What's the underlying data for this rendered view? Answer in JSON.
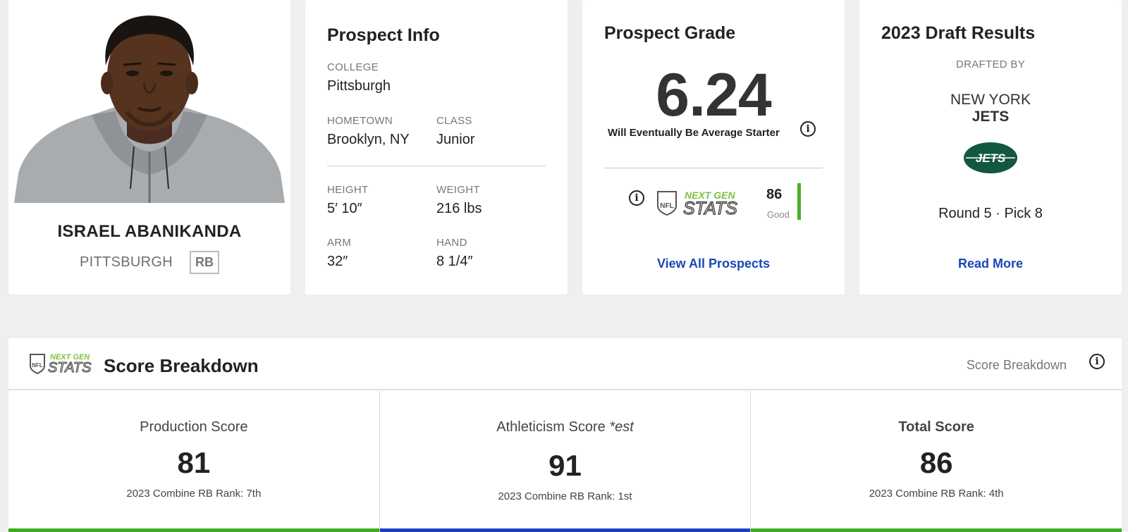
{
  "player": {
    "name": "ISRAEL ABANIKANDA",
    "school": "PITTSBURGH",
    "position": "RB"
  },
  "prospect_info": {
    "title": "Prospect Info",
    "college_label": "COLLEGE",
    "college": "Pittsburgh",
    "hometown_label": "HOMETOWN",
    "hometown": "Brooklyn, NY",
    "class_label": "CLASS",
    "class": "Junior",
    "height_label": "HEIGHT",
    "height": "5′ 10″",
    "weight_label": "WEIGHT",
    "weight": "216 lbs",
    "arm_label": "ARM",
    "arm": "32″",
    "hand_label": "HAND",
    "hand": "8 1/4″"
  },
  "grade": {
    "title": "Prospect Grade",
    "value": "6.24",
    "description": "Will Eventually Be Average Starter",
    "ngs_score": "86",
    "ngs_rating": "Good",
    "link": "View All Prospects"
  },
  "draft": {
    "title": "2023 Draft Results",
    "drafted_by_label": "DRAFTED BY",
    "team_city": "NEW YORK",
    "team_name": "JETS",
    "logo_text": "JETS",
    "pick": "Round 5 · Pick 8",
    "link": "Read More"
  },
  "breakdown": {
    "title": "Score Breakdown",
    "right_label": "Score Breakdown",
    "columns": [
      {
        "title": "Production Score",
        "est": "",
        "score": "81",
        "rank": "2023 Combine RB Rank: 7th",
        "bar_color": "#3daa1f"
      },
      {
        "title": "Athleticism Score",
        "est": "*est",
        "score": "91",
        "rank": "2023 Combine RB Rank: 1st",
        "bar_color": "#1d3fc0"
      },
      {
        "title": "Total Score",
        "est": "",
        "score": "86",
        "rank": "2023 Combine RB Rank: 4th",
        "bar_color": "#3daa1f"
      }
    ]
  },
  "ngs_logo": {
    "top": "NEXT GEN",
    "bottom": "STATS",
    "shield": "NFL"
  },
  "colors": {
    "link": "#1a47b8",
    "ngs_green": "#7cc242",
    "jets_green": "#125740"
  },
  "icons": {
    "info": "info-icon"
  }
}
